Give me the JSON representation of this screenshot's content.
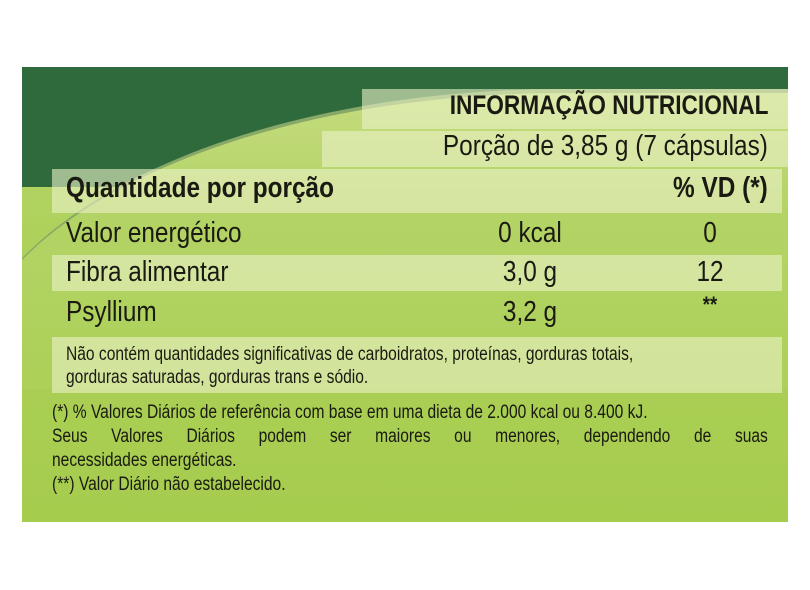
{
  "title": "INFORMAÇÃO NUTRICIONAL",
  "portion": "Porção de 3,85 g (7 cápsulas)",
  "header": {
    "label": "Quantidade por porção",
    "vd": "% VD (*)"
  },
  "rows": [
    {
      "name": "Valor energético",
      "amount": "0 kcal",
      "vd": "0"
    },
    {
      "name": "Fibra alimentar",
      "amount": "3,0 g",
      "vd": "12"
    },
    {
      "name": "Psyllium",
      "amount": "3,2 g",
      "vd": "**"
    }
  ],
  "note": [
    "Não contém quantidades significativas de carboidratos, proteínas, gorduras totais,",
    "gorduras saturadas, gorduras trans e sódio."
  ],
  "footnotes": [
    "(*) % Valores Diários de referência com base em uma dieta de 2.000 kcal ou 8.400 kJ.",
    "Seus Valores Diários podem ser maiores ou menores, dependendo de suas",
    "necessidades energéticas.",
    "(**) Valor Diário não estabelecido."
  ],
  "colors": {
    "dark_green": "#2f6a3c",
    "light_green": "#acd058",
    "band": "#e6efc0"
  }
}
